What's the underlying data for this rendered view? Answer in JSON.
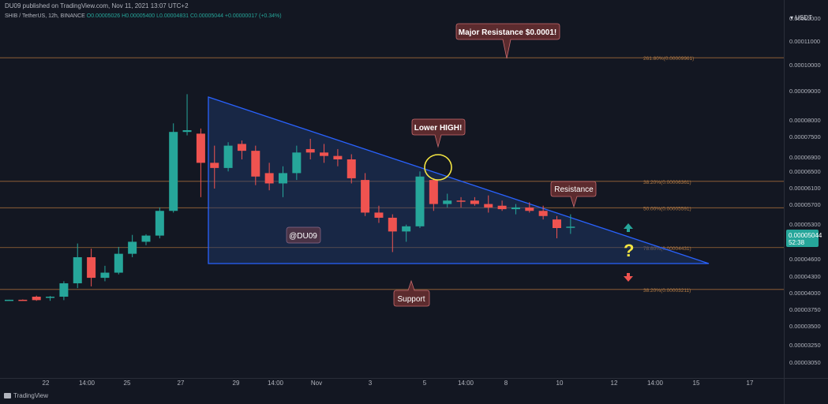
{
  "header": {
    "published_line": "DU09 published on TradingView.com, Nov 11, 2021 13:07 UTC+2",
    "symbol_line": "SHIB / TetherUS, 12h, BINANCE",
    "ohlc": "O0.00005026 H0.00005400 L0.00004831 C0.00005044 +0.00000017 (+0.34%)",
    "price_unit": "USDT"
  },
  "footer": {
    "brand": "TradingView"
  },
  "price_box": {
    "price": "0.00005044",
    "countdown": "52:38",
    "color": "#26a69a"
  },
  "colors": {
    "up": "#26a69a",
    "down": "#ef5350",
    "triangle": "#2962ff",
    "level": "#a0693a",
    "callout": "#5c2b2e",
    "question": "#f5e642"
  },
  "chart_data": {
    "type": "candlestick",
    "title": "",
    "ylim": [
      2.88e-05,
      1.24e-05
    ],
    "y_ticks": [
      "0.00012000",
      "0.00011000",
      "0.00010000",
      "0.00009000",
      "0.00008000",
      "0.00007500",
      "0.00006900",
      "0.00006500",
      "0.00006100",
      "0.00005700",
      "0.00005300",
      "0.00004600",
      "0.00004300",
      "0.00004000",
      "0.00003750",
      "0.00003500",
      "0.00003250",
      "0.00003050"
    ],
    "x_ticks": [
      "22",
      "14:00",
      "25",
      "27",
      "29",
      "14:00",
      "Nov",
      "3",
      "5",
      "14:00",
      "8",
      "10",
      "12",
      "14:00",
      "15",
      "17"
    ],
    "fib_levels": [
      {
        "label": "261.80%(0.00009961)",
        "value": 9.961e-05
      },
      {
        "label": "38.20%(0.00006361)",
        "value": 6.361e-05
      },
      {
        "label": "50.00%(0.00005591)",
        "value": 5.591e-05
      },
      {
        "label": "78.60%(0.00004431)",
        "value": 4.431e-05
      },
      {
        "label": "38.20%(0.00003211)",
        "value": 3.211e-05
      }
    ],
    "candles": [
      {
        "o": 2.9e-05,
        "h": 2.91e-05,
        "l": 2.89e-05,
        "c": 2.91e-05
      },
      {
        "o": 2.91e-05,
        "h": 2.92e-05,
        "l": 2.89e-05,
        "c": 2.9e-05
      },
      {
        "o": 3e-05,
        "h": 3.03e-05,
        "l": 2.88e-05,
        "c": 2.9e-05
      },
      {
        "o": 3e-05,
        "h": 3.02e-05,
        "l": 2.88e-05,
        "c": 3e-05
      },
      {
        "o": 3e-05,
        "h": 3.45e-05,
        "l": 2.9e-05,
        "c": 3.39e-05
      },
      {
        "o": 3.39e-05,
        "h": 4.55e-05,
        "l": 3.25e-05,
        "c": 4.15e-05
      },
      {
        "o": 4.15e-05,
        "h": 4.4e-05,
        "l": 3.3e-05,
        "c": 3.55e-05
      },
      {
        "o": 3.55e-05,
        "h": 3.9e-05,
        "l": 3.45e-05,
        "c": 3.7e-05
      },
      {
        "o": 3.7e-05,
        "h": 4.45e-05,
        "l": 3.65e-05,
        "c": 4.25e-05
      },
      {
        "o": 4.25e-05,
        "h": 4.8e-05,
        "l": 4.15e-05,
        "c": 4.6e-05
      },
      {
        "o": 4.6e-05,
        "h": 4.82e-05,
        "l": 4.5e-05,
        "c": 4.78e-05
      },
      {
        "o": 4.78e-05,
        "h": 5.6e-05,
        "l": 4.7e-05,
        "c": 5.5e-05
      },
      {
        "o": 5.5e-05,
        "h": 8.05e-05,
        "l": 5.45e-05,
        "c": 7.8e-05
      },
      {
        "o": 7.8e-05,
        "h": 8.9e-05,
        "l": 7.7e-05,
        "c": 7.85e-05
      },
      {
        "o": 7.75e-05,
        "h": 7.9e-05,
        "l": 5.9e-05,
        "c": 6.9e-05
      },
      {
        "o": 6.9e-05,
        "h": 7.4e-05,
        "l": 6.15e-05,
        "c": 6.75e-05
      },
      {
        "o": 6.75e-05,
        "h": 7.5e-05,
        "l": 6.65e-05,
        "c": 7.4e-05
      },
      {
        "o": 7.45e-05,
        "h": 7.55e-05,
        "l": 7e-05,
        "c": 7.25e-05
      },
      {
        "o": 7.25e-05,
        "h": 7.4e-05,
        "l": 6.25e-05,
        "c": 6.5e-05
      },
      {
        "o": 6.6e-05,
        "h": 6.9e-05,
        "l": 6.1e-05,
        "c": 6.3e-05
      },
      {
        "o": 6.3e-05,
        "h": 6.8e-05,
        "l": 5.9e-05,
        "c": 6.6e-05
      },
      {
        "o": 6.6e-05,
        "h": 7.4e-05,
        "l": 6.4e-05,
        "c": 7.2e-05
      },
      {
        "o": 7.3e-05,
        "h": 7.6e-05,
        "l": 7e-05,
        "c": 7.2e-05
      },
      {
        "o": 7.2e-05,
        "h": 7.45e-05,
        "l": 6.9e-05,
        "c": 7.1e-05
      },
      {
        "o": 7.1e-05,
        "h": 7.3e-05,
        "l": 6.8e-05,
        "c": 7e-05
      },
      {
        "o": 7e-05,
        "h": 7.15e-05,
        "l": 6.3e-05,
        "c": 6.45e-05
      },
      {
        "o": 6.4e-05,
        "h": 6.6e-05,
        "l": 5.35e-05,
        "c": 5.45e-05
      },
      {
        "o": 5.45e-05,
        "h": 5.65e-05,
        "l": 5.15e-05,
        "c": 5.3e-05
      },
      {
        "o": 5.3e-05,
        "h": 5.4e-05,
        "l": 4.3e-05,
        "c": 4.9e-05
      },
      {
        "o": 4.9e-05,
        "h": 5.1e-05,
        "l": 4.6e-05,
        "c": 5.05e-05
      },
      {
        "o": 5.05e-05,
        "h": 6.65e-05,
        "l": 5e-05,
        "c": 6.5e-05
      },
      {
        "o": 6.4e-05,
        "h": 6.45e-05,
        "l": 5.5e-05,
        "c": 5.7e-05
      },
      {
        "o": 5.7e-05,
        "h": 6e-05,
        "l": 5.6e-05,
        "c": 5.8e-05
      },
      {
        "o": 5.8e-05,
        "h": 5.9e-05,
        "l": 5.6e-05,
        "c": 5.78e-05
      },
      {
        "o": 5.8e-05,
        "h": 5.9e-05,
        "l": 5.65e-05,
        "c": 5.7e-05
      },
      {
        "o": 5.7e-05,
        "h": 5.95e-05,
        "l": 5.45e-05,
        "c": 5.6e-05
      },
      {
        "o": 5.65e-05,
        "h": 5.8e-05,
        "l": 5.5e-05,
        "c": 5.55e-05
      },
      {
        "o": 5.55e-05,
        "h": 5.7e-05,
        "l": 5.4e-05,
        "c": 5.6e-05
      },
      {
        "o": 5.6e-05,
        "h": 5.75e-05,
        "l": 5.45e-05,
        "c": 5.5e-05
      },
      {
        "o": 5.5e-05,
        "h": 5.65e-05,
        "l": 5.25e-05,
        "c": 5.35e-05
      },
      {
        "o": 5.25e-05,
        "h": 5.35e-05,
        "l": 4.7e-05,
        "c": 5e-05
      },
      {
        "o": 5.03e-05,
        "h": 5.4e-05,
        "l": 4.83e-05,
        "c": 5.04e-05
      }
    ],
    "annotations": [
      {
        "text": "Major Resistance $0.0001!"
      },
      {
        "text": "Lower HIGH!"
      },
      {
        "text": "Resistance"
      },
      {
        "text": "Support"
      },
      {
        "text": "@DU09"
      },
      {
        "text": "?"
      }
    ]
  }
}
